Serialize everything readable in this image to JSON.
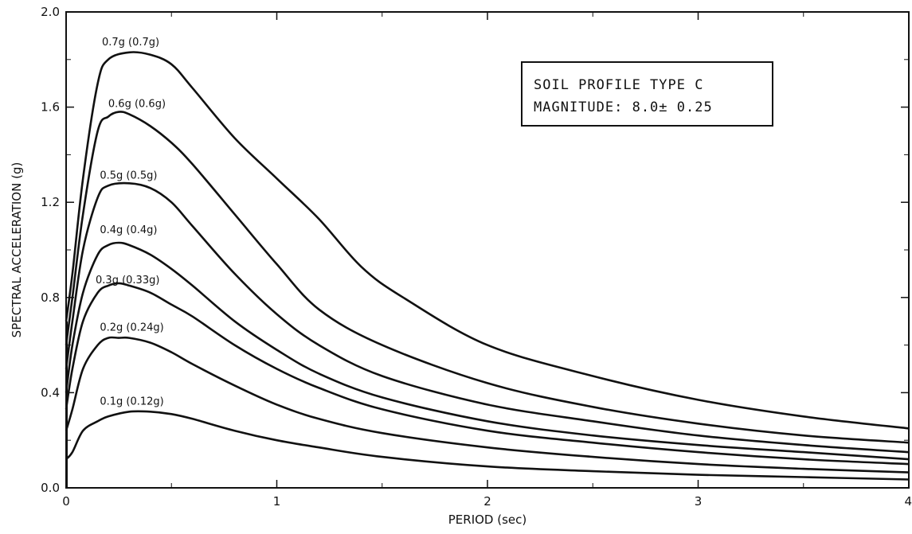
{
  "chart_data": {
    "type": "line",
    "title": "",
    "xlabel": "PERIOD (sec)",
    "ylabel": "SPECTRAL ACCELERATION (g)",
    "xlim": [
      0,
      4
    ],
    "ylim": [
      0,
      2.0
    ],
    "x_ticks": [
      "0",
      "1",
      "2",
      "3",
      "4"
    ],
    "y_ticks": [
      "0.0",
      "0.4",
      "0.8",
      "1.2",
      "1.6",
      "2.0"
    ],
    "grid": false,
    "annotation_box": {
      "line1": "SOIL PROFILE TYPE C",
      "line2": "MAGNITUDE:  8.0± 0.25"
    },
    "series": [
      {
        "label": "0.7g (0.7g)",
        "label_at": [
          0.17,
          1.86
        ],
        "x": [
          0,
          0.03,
          0.08,
          0.15,
          0.2,
          0.3,
          0.4,
          0.5,
          0.6,
          0.8,
          1.0,
          1.2,
          1.4,
          1.6,
          2.0,
          2.5,
          3.0,
          3.5,
          4.0
        ],
        "y": [
          0.7,
          0.9,
          1.3,
          1.7,
          1.8,
          1.83,
          1.82,
          1.78,
          1.68,
          1.47,
          1.3,
          1.13,
          0.93,
          0.8,
          0.6,
          0.47,
          0.37,
          0.3,
          0.25
        ]
      },
      {
        "label": "0.6g (0.6g)",
        "label_at": [
          0.2,
          1.6
        ],
        "x": [
          0,
          0.03,
          0.08,
          0.15,
          0.2,
          0.25,
          0.3,
          0.4,
          0.5,
          0.6,
          0.8,
          1.0,
          1.2,
          1.5,
          2.0,
          2.5,
          3.0,
          3.5,
          4.0
        ],
        "y": [
          0.6,
          0.8,
          1.15,
          1.5,
          1.56,
          1.58,
          1.57,
          1.52,
          1.45,
          1.36,
          1.15,
          0.94,
          0.75,
          0.6,
          0.44,
          0.34,
          0.27,
          0.22,
          0.19
        ]
      },
      {
        "label": "0.5g (0.5g)",
        "label_at": [
          0.16,
          1.3
        ],
        "x": [
          0,
          0.03,
          0.08,
          0.15,
          0.2,
          0.3,
          0.4,
          0.5,
          0.6,
          0.8,
          1.0,
          1.2,
          1.5,
          2.0,
          2.5,
          3.0,
          3.5,
          4.0
        ],
        "y": [
          0.5,
          0.7,
          1.0,
          1.22,
          1.27,
          1.28,
          1.26,
          1.2,
          1.1,
          0.9,
          0.73,
          0.6,
          0.47,
          0.35,
          0.28,
          0.22,
          0.18,
          0.15
        ]
      },
      {
        "label": "0.4g (0.4g)",
        "label_at": [
          0.16,
          1.07
        ],
        "x": [
          0,
          0.03,
          0.08,
          0.15,
          0.2,
          0.25,
          0.3,
          0.4,
          0.5,
          0.6,
          0.8,
          1.0,
          1.2,
          1.5,
          2.0,
          2.5,
          3.0,
          3.5,
          4.0
        ],
        "y": [
          0.4,
          0.6,
          0.82,
          0.98,
          1.02,
          1.03,
          1.02,
          0.98,
          0.92,
          0.85,
          0.7,
          0.58,
          0.48,
          0.38,
          0.28,
          0.22,
          0.18,
          0.15,
          0.12
        ]
      },
      {
        "label": "0.3g (0.33g)",
        "label_at": [
          0.14,
          0.86
        ],
        "x": [
          0,
          0.03,
          0.08,
          0.15,
          0.2,
          0.25,
          0.3,
          0.4,
          0.5,
          0.6,
          0.8,
          1.0,
          1.2,
          1.5,
          2.0,
          2.5,
          3.0,
          3.5,
          4.0
        ],
        "y": [
          0.33,
          0.5,
          0.7,
          0.82,
          0.85,
          0.86,
          0.85,
          0.82,
          0.77,
          0.72,
          0.6,
          0.5,
          0.42,
          0.33,
          0.24,
          0.19,
          0.15,
          0.12,
          0.1
        ]
      },
      {
        "label": "0.2g (0.24g)",
        "label_at": [
          0.16,
          0.66
        ],
        "x": [
          0,
          0.03,
          0.08,
          0.15,
          0.2,
          0.25,
          0.3,
          0.4,
          0.5,
          0.6,
          0.8,
          1.0,
          1.2,
          1.5,
          2.0,
          2.5,
          3.0,
          3.5,
          4.0
        ],
        "y": [
          0.24,
          0.33,
          0.5,
          0.6,
          0.63,
          0.63,
          0.63,
          0.61,
          0.57,
          0.52,
          0.43,
          0.35,
          0.29,
          0.23,
          0.17,
          0.13,
          0.1,
          0.08,
          0.065
        ]
      },
      {
        "label": "0.1g (0.12g)",
        "label_at": [
          0.16,
          0.35
        ],
        "x": [
          0,
          0.03,
          0.08,
          0.15,
          0.2,
          0.3,
          0.4,
          0.5,
          0.6,
          0.8,
          1.0,
          1.2,
          1.5,
          2.0,
          2.5,
          3.0,
          3.5,
          4.0
        ],
        "y": [
          0.12,
          0.15,
          0.24,
          0.28,
          0.3,
          0.32,
          0.32,
          0.31,
          0.29,
          0.24,
          0.2,
          0.17,
          0.13,
          0.09,
          0.07,
          0.055,
          0.045,
          0.035
        ]
      }
    ]
  }
}
